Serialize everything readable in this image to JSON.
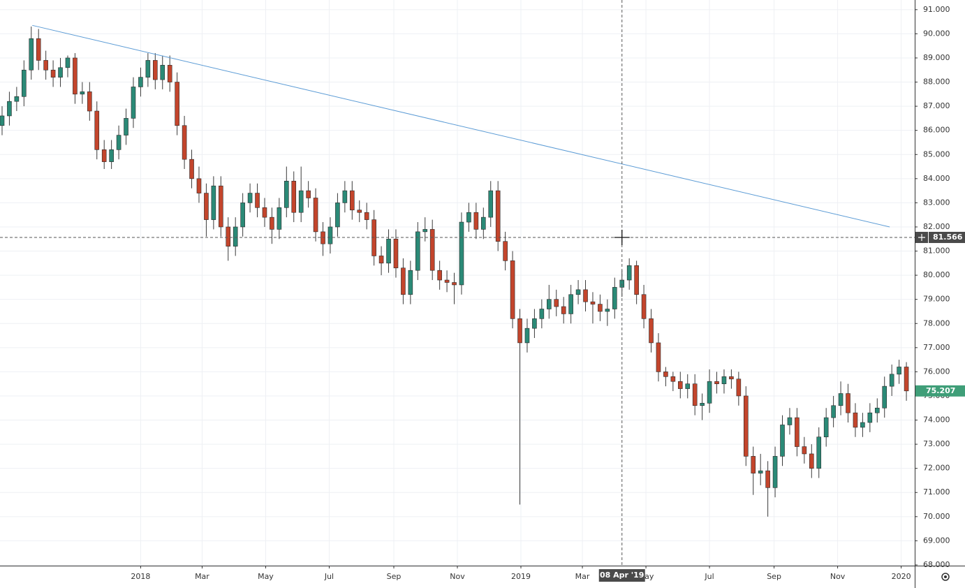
{
  "chart_data": {
    "type": "candlestick",
    "x": [
      "2017-08-21",
      "2017-08-28",
      "2017-09-04",
      "2017-09-11",
      "2017-09-18",
      "2017-09-25",
      "2017-10-02",
      "2017-10-09",
      "2017-10-16",
      "2017-10-23",
      "2017-10-30",
      "2017-11-06",
      "2017-11-13",
      "2017-11-20",
      "2017-11-27",
      "2017-12-04",
      "2017-12-11",
      "2017-12-18",
      "2017-12-25",
      "2018-01-01",
      "2018-01-08",
      "2018-01-15",
      "2018-01-22",
      "2018-01-29",
      "2018-02-05",
      "2018-02-12",
      "2018-02-19",
      "2018-02-26",
      "2018-03-05",
      "2018-03-12",
      "2018-03-19",
      "2018-03-26",
      "2018-04-02",
      "2018-04-09",
      "2018-04-16",
      "2018-04-23",
      "2018-04-30",
      "2018-05-07",
      "2018-05-14",
      "2018-05-21",
      "2018-05-28",
      "2018-06-04",
      "2018-06-11",
      "2018-06-18",
      "2018-06-25",
      "2018-07-02",
      "2018-07-09",
      "2018-07-16",
      "2018-07-23",
      "2018-07-30",
      "2018-08-06",
      "2018-08-13",
      "2018-08-20",
      "2018-08-27",
      "2018-09-03",
      "2018-09-10",
      "2018-09-17",
      "2018-09-24",
      "2018-10-01",
      "2018-10-08",
      "2018-10-15",
      "2018-10-22",
      "2018-10-29",
      "2018-11-05",
      "2018-11-12",
      "2018-11-19",
      "2018-11-26",
      "2018-12-03",
      "2018-12-10",
      "2018-12-17",
      "2018-12-24",
      "2018-12-31",
      "2019-01-07",
      "2019-01-14",
      "2019-01-21",
      "2019-01-28",
      "2019-02-04",
      "2019-02-11",
      "2019-02-18",
      "2019-02-25",
      "2019-03-04",
      "2019-03-11",
      "2019-03-18",
      "2019-03-25",
      "2019-04-01",
      "2019-04-08",
      "2019-04-15",
      "2019-04-22",
      "2019-04-29",
      "2019-05-06",
      "2019-05-13",
      "2019-05-20",
      "2019-05-27",
      "2019-06-03",
      "2019-06-10",
      "2019-06-17",
      "2019-06-24",
      "2019-07-01",
      "2019-07-08",
      "2019-07-15",
      "2019-07-22",
      "2019-07-29",
      "2019-08-05",
      "2019-08-12",
      "2019-08-19",
      "2019-08-26",
      "2019-09-02",
      "2019-09-09",
      "2019-09-16",
      "2019-09-23",
      "2019-09-30",
      "2019-10-07",
      "2019-10-14",
      "2019-10-21",
      "2019-10-28",
      "2019-11-04",
      "2019-11-11",
      "2019-11-18",
      "2019-11-25",
      "2019-12-02",
      "2019-12-09",
      "2019-12-16",
      "2019-12-23",
      "2019-12-30",
      "2020-01-06"
    ],
    "open": [
      86.2,
      86.6,
      87.2,
      87.4,
      88.5,
      89.8,
      88.9,
      88.5,
      88.2,
      88.6,
      89,
      87.5,
      87.6,
      86.8,
      85.2,
      84.7,
      85.2,
      85.8,
      86.5,
      87.8,
      88.2,
      88.9,
      88.1,
      88.7,
      88,
      86.2,
      84.8,
      84,
      83.4,
      82.3,
      83.7,
      82,
      81.2,
      82,
      83,
      83.4,
      82.8,
      82.4,
      81.9,
      82.8,
      83.9,
      82.6,
      83.5,
      83.2,
      81.8,
      81.3,
      82,
      83,
      83.5,
      82.7,
      82.6,
      82.3,
      80.8,
      80.5,
      81.5,
      80.3,
      79.2,
      80.2,
      81.8,
      81.9,
      80.2,
      79.8,
      79.7,
      79.6,
      82.2,
      82.6,
      81.9,
      82.4,
      83.5,
      81.4,
      80.6,
      78.2,
      77.2,
      77.8,
      78.2,
      78.6,
      79,
      78.7,
      78.4,
      79.2,
      79.4,
      78.9,
      78.8,
      78.5,
      78.6,
      79.5,
      79.8,
      80.4,
      79.2,
      78.2,
      77.2,
      76,
      75.8,
      75.6,
      75.3,
      75.5,
      74.6,
      74.7,
      75.6,
      75.5,
      75.8,
      75.7,
      75,
      72.5,
      71.8,
      71.9,
      71.2,
      72.5,
      73.8,
      74.1,
      72.9,
      72.6,
      72,
      73.3,
      74.1,
      74.6,
      75.1,
      74.3,
      73.7,
      73.9,
      74.3,
      74.5,
      75.4,
      75.9,
      76.2
    ],
    "high": [
      87.0,
      87.6,
      87.8,
      88.9,
      90.3,
      90.2,
      89.3,
      88.9,
      89.0,
      89.1,
      89.2,
      88.0,
      88.0,
      87.2,
      85.6,
      85.6,
      86.2,
      86.9,
      88.2,
      88.6,
      89.2,
      89.2,
      89.1,
      89.1,
      88.4,
      86.6,
      85.2,
      84.5,
      83.8,
      84.1,
      84.1,
      82.4,
      82.4,
      83.4,
      83.8,
      83.8,
      83.2,
      82.8,
      83.2,
      84.5,
      84.3,
      84.5,
      83.9,
      83.6,
      82.2,
      82.4,
      83.4,
      83.9,
      83.9,
      83.1,
      83.0,
      82.7,
      81.2,
      81.9,
      81.9,
      80.7,
      80.6,
      82.2,
      82.4,
      82.3,
      80.6,
      80.2,
      80.1,
      82.6,
      83.0,
      83.0,
      82.8,
      83.9,
      83.9,
      81.8,
      81.0,
      78.6,
      78.2,
      78.6,
      79.0,
      79.6,
      79.4,
      79.1,
      79.6,
      79.8,
      79.8,
      79.3,
      79.2,
      79.0,
      79.9,
      80.2,
      80.7,
      80.6,
      79.6,
      78.6,
      77.6,
      76.2,
      76.0,
      76.0,
      75.9,
      75.9,
      75.1,
      76.1,
      76.0,
      76.1,
      76.1,
      76.0,
      75.4,
      72.9,
      72.6,
      72.3,
      72.9,
      74.2,
      74.5,
      74.5,
      73.3,
      73.0,
      73.7,
      74.5,
      75.0,
      75.6,
      75.5,
      74.7,
      74.3,
      74.7,
      74.9,
      75.8,
      76.3,
      76.5,
      76.4
    ],
    "low": [
      85.8,
      86.2,
      86.8,
      87.0,
      88.1,
      88.5,
      88.1,
      87.8,
      87.8,
      88.2,
      87.1,
      87.1,
      86.4,
      84.8,
      84.4,
      84.4,
      84.8,
      85.4,
      86.1,
      87.4,
      87.8,
      87.7,
      87.7,
      87.6,
      85.8,
      84.4,
      83.6,
      83.0,
      81.6,
      81.9,
      81.6,
      80.6,
      80.8,
      81.6,
      82.6,
      82.4,
      82.0,
      81.3,
      81.5,
      82.4,
      82.2,
      82.2,
      82.8,
      81.4,
      80.8,
      80.9,
      81.6,
      82.6,
      82.3,
      82.2,
      81.9,
      80.4,
      80.0,
      80.1,
      79.9,
      78.8,
      78.8,
      79.8,
      81.4,
      79.8,
      79.4,
      79.3,
      78.8,
      79.2,
      81.8,
      81.5,
      81.5,
      82.0,
      81.0,
      80.2,
      77.8,
      70.5,
      76.8,
      77.4,
      77.8,
      78.2,
      78.3,
      78.0,
      78.0,
      78.8,
      78.5,
      78.0,
      78.1,
      77.9,
      78.2,
      79.1,
      79.4,
      78.8,
      77.8,
      76.8,
      75.6,
      75.4,
      75.2,
      74.9,
      74.9,
      74.2,
      74.0,
      74.3,
      75.1,
      75.1,
      75.3,
      74.6,
      72.1,
      70.9,
      71.3,
      70.0,
      70.8,
      72.1,
      73.4,
      72.5,
      72.2,
      71.6,
      71.6,
      72.9,
      73.7,
      74.2,
      73.9,
      73.3,
      73.3,
      73.5,
      73.9,
      74.1,
      75.0,
      75.5,
      74.8
    ],
    "close": [
      86.6,
      87.2,
      87.4,
      88.5,
      89.8,
      88.9,
      88.5,
      88.2,
      88.6,
      89,
      87.5,
      87.6,
      86.8,
      85.2,
      84.7,
      85.2,
      85.8,
      86.5,
      87.8,
      88.2,
      88.9,
      88.1,
      88.7,
      88,
      86.2,
      84.8,
      84,
      83.4,
      82.3,
      83.7,
      82,
      81.2,
      82,
      83,
      83.4,
      82.8,
      82.4,
      81.9,
      82.8,
      83.9,
      82.6,
      83.5,
      83.2,
      81.8,
      81.3,
      82,
      83,
      83.5,
      82.7,
      82.6,
      82.3,
      80.8,
      80.5,
      81.5,
      80.3,
      79.2,
      80.2,
      81.8,
      81.9,
      80.2,
      79.8,
      79.7,
      79.6,
      82.2,
      82.6,
      81.9,
      82.4,
      83.5,
      81.4,
      80.6,
      78.2,
      77.2,
      77.8,
      78.2,
      78.6,
      79,
      78.7,
      78.4,
      79.2,
      79.4,
      78.9,
      78.8,
      78.5,
      78.6,
      79.5,
      79.8,
      80.4,
      79.2,
      78.2,
      77.2,
      76,
      75.8,
      75.6,
      75.3,
      75.5,
      74.6,
      74.7,
      75.6,
      75.5,
      75.8,
      75.7,
      75,
      72.5,
      71.8,
      71.9,
      71.2,
      72.5,
      73.8,
      74.1,
      72.9,
      72.6,
      72,
      73.3,
      74.1,
      74.6,
      75.1,
      74.3,
      73.7,
      73.9,
      74.3,
      74.5,
      75.4,
      75.9,
      76.2,
      75.207
    ],
    "up_color": "#2b8a77",
    "down_color": "#c3452c",
    "xlim": [
      "2017-08-19",
      "2020-01-14"
    ],
    "ylim": [
      67.97,
      91.4
    ],
    "yticks": [
      {
        "value": 68,
        "label": "68.000"
      },
      {
        "value": 69,
        "label": "69.000"
      },
      {
        "value": 70,
        "label": "70.000"
      },
      {
        "value": 71,
        "label": "71.000"
      },
      {
        "value": 72,
        "label": "72.000"
      },
      {
        "value": 73,
        "label": "73.000"
      },
      {
        "value": 74,
        "label": "74.000"
      },
      {
        "value": 75,
        "label": "75.000"
      },
      {
        "value": 76,
        "label": "76.000"
      },
      {
        "value": 77,
        "label": "77.000"
      },
      {
        "value": 78,
        "label": "78.000"
      },
      {
        "value": 79,
        "label": "79.000"
      },
      {
        "value": 80,
        "label": "80.000"
      },
      {
        "value": 81,
        "label": "81.000"
      },
      {
        "value": 82,
        "label": "82.000"
      },
      {
        "value": 83,
        "label": "83.000"
      },
      {
        "value": 84,
        "label": "84.000"
      },
      {
        "value": 85,
        "label": "85.000"
      },
      {
        "value": 86,
        "label": "86.000"
      },
      {
        "value": 87,
        "label": "87.000"
      },
      {
        "value": 88,
        "label": "88.000"
      },
      {
        "value": 89,
        "label": "89.000"
      },
      {
        "value": 90,
        "label": "90.000"
      },
      {
        "value": 91,
        "label": "91.000"
      }
    ],
    "xticks": [
      {
        "value": "2018-01-01",
        "label": "2018"
      },
      {
        "value": "2018-03-01",
        "label": "Mar"
      },
      {
        "value": "2018-05-01",
        "label": "May"
      },
      {
        "value": "2018-07-01",
        "label": "Jul"
      },
      {
        "value": "2018-09-01",
        "label": "Sep"
      },
      {
        "value": "2018-11-01",
        "label": "Nov"
      },
      {
        "value": "2019-01-01",
        "label": "2019"
      },
      {
        "value": "2019-03-01",
        "label": "Mar"
      },
      {
        "value": "2019-05-01",
        "label": "May"
      },
      {
        "value": "2019-07-01",
        "label": "Jul"
      },
      {
        "value": "2019-09-01",
        "label": "Sep"
      },
      {
        "value": "2019-11-01",
        "label": "Nov"
      },
      {
        "value": "2020-01-01",
        "label": "2020"
      }
    ],
    "grid": true,
    "trendline": {
      "x": [
        "2017-09-19",
        "2019-12-21"
      ],
      "y": [
        90.35,
        82.0
      ],
      "color": "#5b9bd5"
    },
    "crosshair": {
      "x": "2019-04-08",
      "x_label": "08 Apr '19",
      "y": 81.566
    },
    "last_price_color": "#3f9e78"
  }
}
